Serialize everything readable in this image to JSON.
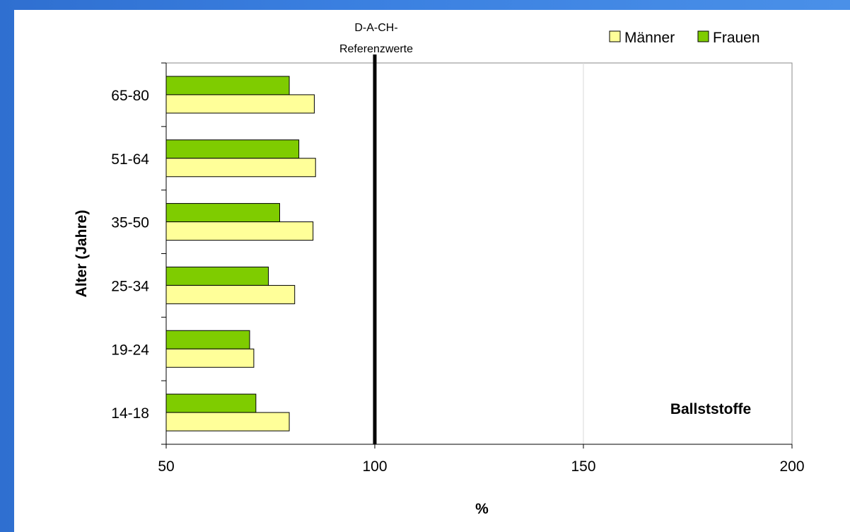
{
  "chart_data": {
    "type": "bar",
    "orientation": "horizontal",
    "categories": [
      "65-80",
      "51-64",
      "35-50",
      "25-34",
      "19-24",
      "14-18"
    ],
    "series": [
      {
        "name": "Frauen",
        "color": "#7fcc00",
        "values": [
          79.5,
          81.8,
          77.2,
          74.5,
          70.0,
          71.5
        ]
      },
      {
        "name": "Männer",
        "color": "#ffff99",
        "values": [
          85.5,
          85.8,
          85.2,
          80.8,
          71.0,
          79.5
        ]
      }
    ],
    "xlabel": "%",
    "ylabel": "Alter (Jahre)",
    "xlim": [
      50,
      200
    ],
    "xticks": [
      "50",
      "100",
      "150",
      "200"
    ],
    "grid": "vertical",
    "legend": {
      "position": "top-right",
      "order": [
        "Männer",
        "Frauen"
      ]
    },
    "reference_line": {
      "value": 100,
      "label_lines": [
        "D-A-CH-",
        "Referenzwerte"
      ]
    },
    "annotation": "Ballststoffe"
  }
}
